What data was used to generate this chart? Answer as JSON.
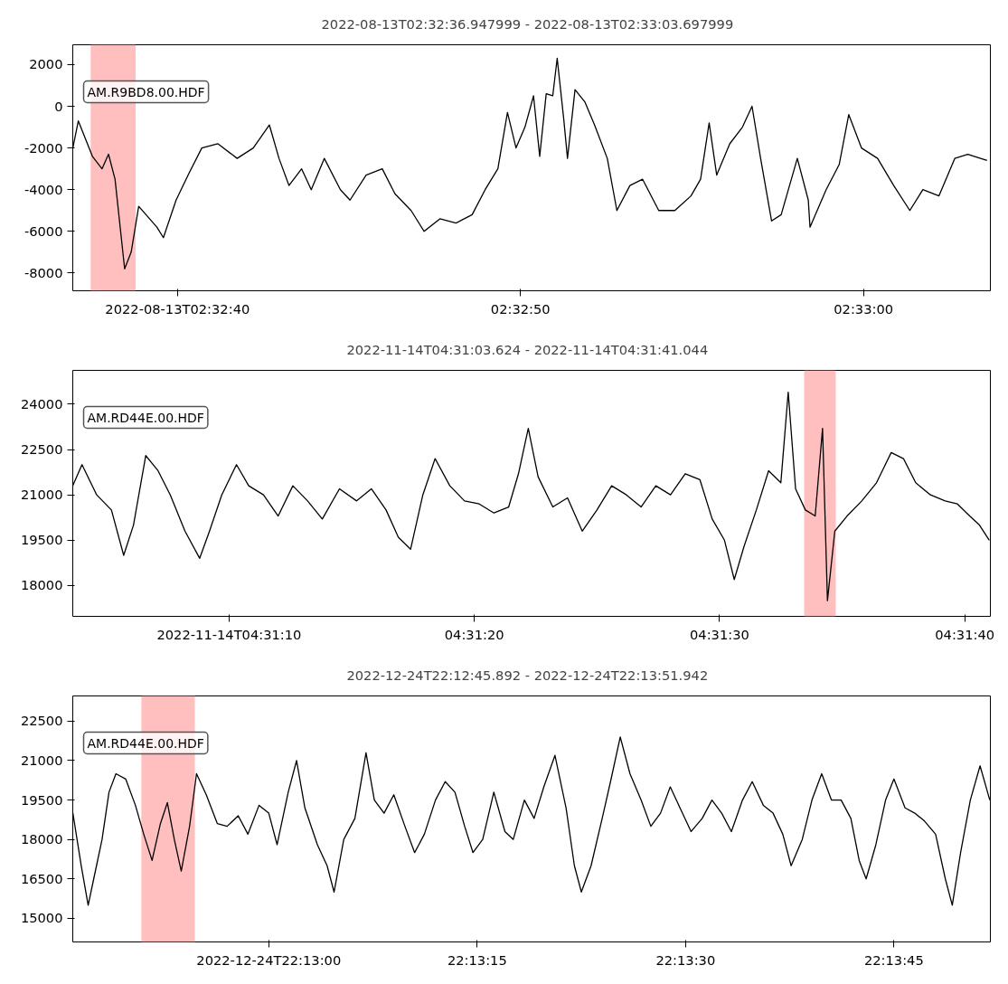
{
  "chart_data": [
    {
      "type": "line",
      "title": "2022-08-13T02:32:36.947999  -  2022-08-13T02:33:03.697999",
      "x": [
        "2022-08-13T02:32:36.95",
        "2022-08-13T02:32:37.11",
        "2022-08-13T02:32:37.52",
        "2022-08-13T02:32:37.80",
        "2022-08-13T02:32:37.99",
        "2022-08-13T02:32:38.18",
        "2022-08-13T02:32:38.46",
        "2022-08-13T02:32:38.65",
        "2022-08-13T02:32:38.87",
        "2022-08-13T02:32:39.40",
        "2022-08-13T02:32:39.59",
        "2022-08-13T02:32:39.96",
        "2022-08-13T02:32:40.34",
        "2022-08-13T02:32:40.71",
        "2022-08-13T02:32:41.18",
        "2022-08-13T02:32:41.74",
        "2022-08-13T02:32:42.21",
        "2022-08-13T02:32:42.68",
        "2022-08-13T02:32:42.96",
        "2022-08-13T02:32:43.25",
        "2022-08-13T02:32:43.62",
        "2022-08-13T02:32:43.90",
        "2022-08-13T02:32:44.28",
        "2022-08-13T02:32:44.75",
        "2022-08-13T02:32:45.03",
        "2022-08-13T02:32:45.50",
        "2022-08-13T02:32:45.97",
        "2022-08-13T02:32:46.34",
        "2022-08-13T02:32:46.81",
        "2022-08-13T02:32:47.19",
        "2022-08-13T02:32:47.65",
        "2022-08-13T02:32:48.12",
        "2022-08-13T02:32:48.59",
        "2022-08-13T02:32:48.97",
        "2022-08-13T02:32:49.34",
        "2022-08-13T02:32:49.62",
        "2022-08-13T02:32:49.87",
        "2022-08-13T02:32:50.13",
        "2022-08-13T02:32:50.38",
        "2022-08-13T02:32:50.56",
        "2022-08-13T02:32:50.75",
        "2022-08-13T02:32:50.94",
        "2022-08-13T02:32:51.07",
        "2022-08-13T02:32:51.26",
        "2022-08-13T02:32:51.37",
        "2022-08-13T02:32:51.59",
        "2022-08-13T02:32:51.88",
        "2022-08-13T02:32:52.16",
        "2022-08-13T02:32:52.53",
        "2022-08-13T02:32:52.81",
        "2022-08-13T02:32:53.19",
        "2022-08-13T02:32:53.56",
        "2022-08-13T02:32:54.03",
        "2022-08-13T02:32:54.50",
        "2022-08-13T02:32:54.97",
        "2022-08-13T02:32:55.25",
        "2022-08-13T02:32:55.50",
        "2022-08-13T02:32:55.72",
        "2022-08-13T02:32:56.10",
        "2022-08-13T02:32:56.47",
        "2022-08-13T02:32:56.75",
        "2022-08-13T02:32:57.00",
        "2022-08-13T02:32:57.32",
        "2022-08-13T02:32:57.60",
        "2022-08-13T02:32:58.07",
        "2022-08-13T02:32:58.39",
        "2022-08-13T02:32:58.44",
        "2022-08-13T02:32:58.91",
        "2022-08-13T02:32:59.29",
        "2022-08-13T02:32:59.57",
        "2022-08-13T02:32:59.94",
        "2022-08-13T02:33:00.41",
        "2022-08-13T02:33:00.88",
        "2022-08-13T02:33:01.35",
        "2022-08-13T02:33:01.73",
        "2022-08-13T02:33:02.20",
        "2022-08-13T02:33:02.66",
        "2022-08-13T02:33:03.04",
        "2022-08-13T02:33:03.41",
        "2022-08-13T02:33:03.60"
      ],
      "series": [
        {
          "name": "AM.R9BD8.00.HDF",
          "color": "#000000",
          "values": [
            -2000,
            -700,
            -2400,
            -3000,
            -2300,
            -3500,
            -7800,
            -7000,
            -4800,
            -5800,
            -6300,
            -4500,
            -3200,
            -2000,
            -1800,
            -2500,
            -2000,
            -900,
            -2500,
            -3800,
            -3000,
            -4000,
            -2500,
            -4000,
            -4500,
            -3300,
            -3000,
            -4200,
            -5000,
            -6000,
            -5400,
            -5600,
            -5200,
            -4000,
            -3000,
            -300,
            -2000,
            -1000,
            500,
            -2400,
            600,
            500,
            2300,
            -600,
            -2500,
            800,
            200,
            -900,
            -2500,
            -5000,
            -3800,
            -3500,
            -5000,
            -5000,
            -4300,
            -3500,
            -800,
            -3300,
            -1800,
            -1000,
            0,
            -2500,
            -5500,
            -5200,
            -2500,
            -4500,
            -5800,
            -4000,
            -2800,
            -400,
            -2000,
            -2500,
            -3800,
            -5000,
            -4000,
            -4300,
            -2500,
            -2300,
            -2500,
            -2600
          ]
        }
      ],
      "xlim": [
        "2022-08-13T02:32:36.947999",
        "2022-08-13T02:33:03.697999"
      ],
      "xticks": [
        {
          "value": "2022-08-13T02:32:40",
          "label": "2022-08-13T02:32:40"
        },
        {
          "value": "2022-08-13T02:32:50",
          "label": "02:32:50"
        },
        {
          "value": "2022-08-13T02:33:00",
          "label": "02:33:00"
        }
      ],
      "ylim": [
        -8850,
        2950
      ],
      "yticks": [
        -8000,
        -6000,
        -4000,
        -2000,
        0,
        2000
      ],
      "bands": [
        {
          "axis": "x",
          "from": "2022-08-13T02:32:37.47",
          "to": "2022-08-13T02:32:38.78",
          "label": null,
          "color": "#ffbfbf"
        }
      ]
    },
    {
      "type": "line",
      "title": "2022-11-14T04:31:03.624  -  2022-11-14T04:31:41.044",
      "x": [
        "2022-11-14T04:31:03.62",
        "2022-11-14T04:31:04.0",
        "2022-11-14T04:31:04.6",
        "2022-11-14T04:31:05.2",
        "2022-11-14T04:31:05.7",
        "2022-11-14T04:31:06.1",
        "2022-11-14T04:31:06.6",
        "2022-11-14T04:31:07.1",
        "2022-11-14T04:31:07.6",
        "2022-11-14T04:31:08.2",
        "2022-11-14T04:31:08.8",
        "2022-11-14T04:31:09.2",
        "2022-11-14T04:31:09.7",
        "2022-11-14T04:31:10.3",
        "2022-11-14T04:31:10.8",
        "2022-11-14T04:31:11.4",
        "2022-11-14T04:31:12.0",
        "2022-11-14T04:31:12.6",
        "2022-11-14T04:31:13.2",
        "2022-11-14T04:31:13.8",
        "2022-11-14T04:31:14.5",
        "2022-11-14T04:31:15.2",
        "2022-11-14T04:31:15.8",
        "2022-11-14T04:31:16.4",
        "2022-11-14T04:31:16.9",
        "2022-11-14T04:31:17.4",
        "2022-11-14T04:31:17.9",
        "2022-11-14T04:31:18.4",
        "2022-11-14T04:31:19.0",
        "2022-11-14T04:31:19.6",
        "2022-11-14T04:31:20.2",
        "2022-11-14T04:31:20.8",
        "2022-11-14T04:31:21.4",
        "2022-11-14T04:31:21.8",
        "2022-11-14T04:31:22.2",
        "2022-11-14T04:31:22.6",
        "2022-11-14T04:31:23.2",
        "2022-11-14T04:31:23.8",
        "2022-11-14T04:31:24.4",
        "2022-11-14T04:31:25.0",
        "2022-11-14T04:31:25.6",
        "2022-11-14T04:31:26.2",
        "2022-11-14T04:31:26.8",
        "2022-11-14T04:31:27.4",
        "2022-11-14T04:31:28.0",
        "2022-11-14T04:31:28.6",
        "2022-11-14T04:31:29.2",
        "2022-11-14T04:31:29.7",
        "2022-11-14T04:31:30.2",
        "2022-11-14T04:31:30.6",
        "2022-11-14T04:31:31.0",
        "2022-11-14T04:31:31.5",
        "2022-11-14T04:31:32.0",
        "2022-11-14T04:31:32.5",
        "2022-11-14T04:31:32.8",
        "2022-11-14T04:31:33.1",
        "2022-11-14T04:31:33.5",
        "2022-11-14T04:31:33.9",
        "2022-11-14T04:31:34.2",
        "2022-11-14T04:31:34.4",
        "2022-11-14T04:31:34.7",
        "2022-11-14T04:31:35.2",
        "2022-11-14T04:31:35.8",
        "2022-11-14T04:31:36.4",
        "2022-11-14T04:31:37.0",
        "2022-11-14T04:31:37.5",
        "2022-11-14T04:31:38.0",
        "2022-11-14T04:31:38.6",
        "2022-11-14T04:31:39.2",
        "2022-11-14T04:31:39.7",
        "2022-11-14T04:31:40.2",
        "2022-11-14T04:31:40.6",
        "2022-11-14T04:31:41.0"
      ],
      "series": [
        {
          "name": "AM.RD44E.00.HDF",
          "color": "#000000",
          "values": [
            21300,
            22000,
            21000,
            20500,
            19000,
            20000,
            22300,
            21800,
            21000,
            19800,
            18900,
            19800,
            21000,
            22000,
            21300,
            21000,
            20300,
            21300,
            20800,
            20200,
            21200,
            20800,
            21200,
            20500,
            19600,
            19200,
            21000,
            22200,
            21300,
            20800,
            20700,
            20400,
            20600,
            21700,
            23200,
            21600,
            20600,
            20900,
            19800,
            20500,
            21300,
            21000,
            20600,
            21300,
            21000,
            21700,
            21500,
            20200,
            19500,
            18200,
            19300,
            20500,
            21800,
            21400,
            24400,
            21200,
            20500,
            20300,
            23200,
            17500,
            19800,
            20300,
            20800,
            21400,
            22400,
            22200,
            21400,
            21000,
            20800,
            20700,
            20300,
            20000,
            19500
          ]
        }
      ],
      "xlim": [
        "2022-11-14T04:31:03.624",
        "2022-11-14T04:31:41.044"
      ],
      "xticks": [
        {
          "value": "2022-11-14T04:31:10",
          "label": "2022-11-14T04:31:10"
        },
        {
          "value": "2022-11-14T04:31:20",
          "label": "04:31:20"
        },
        {
          "value": "2022-11-14T04:31:30",
          "label": "04:31:30"
        },
        {
          "value": "2022-11-14T04:31:40",
          "label": "04:31:40"
        }
      ],
      "ylim": [
        16980,
        25120
      ],
      "yticks": [
        18000,
        19500,
        21000,
        22500,
        24000
      ],
      "bands": [
        {
          "axis": "x",
          "from": "2022-11-14T04:31:33.45",
          "to": "2022-11-14T04:31:34.74",
          "label": null,
          "color": "#ffbfbf"
        }
      ]
    },
    {
      "type": "line",
      "title": "2022-12-24T22:12:45.892  -  2022-12-24T22:13:51.942",
      "x": [
        "2022-12-24T22:12:45.9",
        "2022-12-24T22:12:46.5",
        "2022-12-24T22:12:47.0",
        "2022-12-24T22:12:47.4",
        "2022-12-24T22:12:48.0",
        "2022-12-24T22:12:48.5",
        "2022-12-24T22:12:49.0",
        "2022-12-24T22:12:49.7",
        "2022-12-24T22:12:50.4",
        "2022-12-24T22:12:51.0",
        "2022-12-24T22:12:51.6",
        "2022-12-24T22:12:52.2",
        "2022-12-24T22:12:52.7",
        "2022-12-24T22:12:53.2",
        "2022-12-24T22:12:53.7",
        "2022-12-24T22:12:54.3",
        "2022-12-24T22:12:54.8",
        "2022-12-24T22:12:55.5",
        "2022-12-24T22:12:56.3",
        "2022-12-24T22:12:57.0",
        "2022-12-24T22:12:57.8",
        "2022-12-24T22:12:58.5",
        "2022-12-24T22:12:59.3",
        "2022-12-24T22:13:00.0",
        "2022-12-24T22:13:00.6",
        "2022-12-24T22:13:01.4",
        "2022-12-24T22:13:02.0",
        "2022-12-24T22:13:02.6",
        "2022-12-24T22:13:03.5",
        "2022-12-24T22:13:04.2",
        "2022-12-24T22:13:04.7",
        "2022-12-24T22:13:05.4",
        "2022-12-24T22:13:06.2",
        "2022-12-24T22:13:07.0",
        "2022-12-24T22:13:07.6",
        "2022-12-24T22:13:08.3",
        "2022-12-24T22:13:09.0",
        "2022-12-24T22:13:09.8",
        "2022-12-24T22:13:10.5",
        "2022-12-24T22:13:11.2",
        "2022-12-24T22:13:12.0",
        "2022-12-24T22:13:12.7",
        "2022-12-24T22:13:13.4",
        "2022-12-24T22:13:14.1",
        "2022-12-24T22:13:14.7",
        "2022-12-24T22:13:15.4",
        "2022-12-24T22:13:16.2",
        "2022-12-24T22:13:17.0",
        "2022-12-24T22:13:17.6",
        "2022-12-24T22:13:18.4",
        "2022-12-24T22:13:19.1",
        "2022-12-24T22:13:19.8",
        "2022-12-24T22:13:20.6",
        "2022-12-24T22:13:21.4",
        "2022-12-24T22:13:22.0",
        "2022-12-24T22:13:22.5",
        "2022-12-24T22:13:23.2",
        "2022-12-24T22:13:24.0",
        "2022-12-24T22:13:24.6",
        "2022-12-24T22:13:25.3",
        "2022-12-24T22:13:26.0",
        "2022-12-24T22:13:26.8",
        "2022-12-24T22:13:27.5",
        "2022-12-24T22:13:28.2",
        "2022-12-24T22:13:28.9",
        "2022-12-24T22:13:29.6",
        "2022-12-24T22:13:30.4",
        "2022-12-24T22:13:31.2",
        "2022-12-24T22:13:31.9",
        "2022-12-24T22:13:32.6",
        "2022-12-24T22:13:33.3",
        "2022-12-24T22:13:34.1",
        "2022-12-24T22:13:34.8",
        "2022-12-24T22:13:35.6",
        "2022-12-24T22:13:36.3",
        "2022-12-24T22:13:37.0",
        "2022-12-24T22:13:37.6",
        "2022-12-24T22:13:38.4",
        "2022-12-24T22:13:39.1",
        "2022-12-24T22:13:39.8",
        "2022-12-24T22:13:40.5",
        "2022-12-24T22:13:41.2",
        "2022-12-24T22:13:41.9",
        "2022-12-24T22:13:42.5",
        "2022-12-24T22:13:43.0",
        "2022-12-24T22:13:43.7",
        "2022-12-24T22:13:44.4",
        "2022-12-24T22:13:45.0",
        "2022-12-24T22:13:45.8",
        "2022-12-24T22:13:46.5",
        "2022-12-24T22:13:47.2",
        "2022-12-24T22:13:48.0",
        "2022-12-24T22:13:48.7",
        "2022-12-24T22:13:49.2",
        "2022-12-24T22:13:49.8",
        "2022-12-24T22:13:50.5",
        "2022-12-24T22:13:51.2",
        "2022-12-24T22:13:51.9"
      ],
      "series": [
        {
          "name": "AM.RD44E.00.HDF",
          "color": "#000000",
          "values": [
            19000,
            17000,
            15500,
            16500,
            18000,
            19800,
            20500,
            20300,
            19300,
            18200,
            17200,
            18600,
            19400,
            18000,
            16800,
            18500,
            20500,
            19700,
            18600,
            18500,
            18900,
            18200,
            19300,
            19000,
            17800,
            19800,
            21000,
            19200,
            17800,
            17000,
            16000,
            18000,
            18800,
            21300,
            19500,
            19000,
            19700,
            18500,
            17500,
            18200,
            19500,
            20200,
            19800,
            18500,
            17500,
            18000,
            19800,
            18300,
            18000,
            19500,
            18800,
            20000,
            21200,
            19200,
            17000,
            16000,
            17000,
            18800,
            20200,
            21900,
            20500,
            19500,
            18500,
            19000,
            20000,
            19200,
            18300,
            18800,
            19500,
            19000,
            18300,
            19500,
            20200,
            19300,
            19000,
            18200,
            17000,
            18000,
            19500,
            20500,
            19500,
            19500,
            18800,
            17200,
            16500,
            17800,
            19500,
            20300,
            19200,
            19000,
            18700,
            18200,
            16500,
            15500,
            17500,
            19500,
            20800,
            19500
          ]
        }
      ],
      "xlim": [
        "2022-12-24T22:12:45.892",
        "2022-12-24T22:13:51.942"
      ],
      "xticks": [
        {
          "value": "2022-12-24T22:13:00",
          "label": "2022-12-24T22:13:00"
        },
        {
          "value": "2022-12-24T22:13:15",
          "label": "22:13:15"
        },
        {
          "value": "2022-12-24T22:13:30",
          "label": "22:13:30"
        },
        {
          "value": "2022-12-24T22:13:45",
          "label": "22:13:45"
        }
      ],
      "ylim": [
        14100,
        23460
      ],
      "yticks": [
        15000,
        16500,
        18000,
        19500,
        21000,
        22500
      ],
      "bands": [
        {
          "axis": "x",
          "from": "2022-12-24T22:12:50.83",
          "to": "2022-12-24T22:12:54.68",
          "label": null,
          "color": "#ffbfbf"
        }
      ]
    }
  ]
}
